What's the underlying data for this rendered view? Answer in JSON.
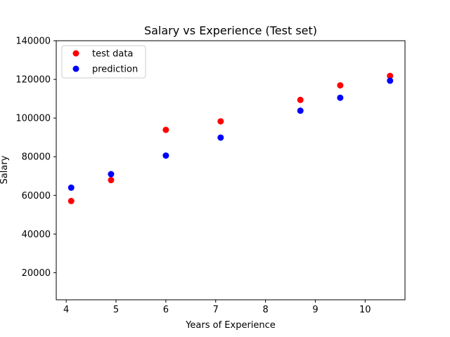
{
  "chart_data": {
    "type": "scatter",
    "title": "Salary vs Experience (Test set)",
    "xlabel": "Years of Experience",
    "ylabel": "Salary",
    "xlim": [
      3.8,
      10.8
    ],
    "ylim": [
      6000,
      140000
    ],
    "xticks": [
      4,
      5,
      6,
      7,
      8,
      9,
      10
    ],
    "yticks": [
      20000,
      40000,
      60000,
      80000,
      100000,
      120000,
      140000
    ],
    "grid": false,
    "legend_position": "upper-left",
    "series": [
      {
        "name": "test data",
        "color": "#ff0000",
        "points": [
          [
            4.1,
            57100
          ],
          [
            4.9,
            67900
          ],
          [
            6.0,
            93900
          ],
          [
            7.1,
            98300
          ],
          [
            8.7,
            109400
          ],
          [
            9.5,
            116900
          ],
          [
            10.5,
            121800
          ]
        ]
      },
      {
        "name": "prediction",
        "color": "#0000ff",
        "points": [
          [
            4.1,
            64000
          ],
          [
            4.9,
            71000
          ],
          [
            6.0,
            80600
          ],
          [
            7.1,
            89900
          ],
          [
            8.7,
            103800
          ],
          [
            9.5,
            110500
          ],
          [
            10.5,
            119300
          ]
        ]
      }
    ]
  }
}
